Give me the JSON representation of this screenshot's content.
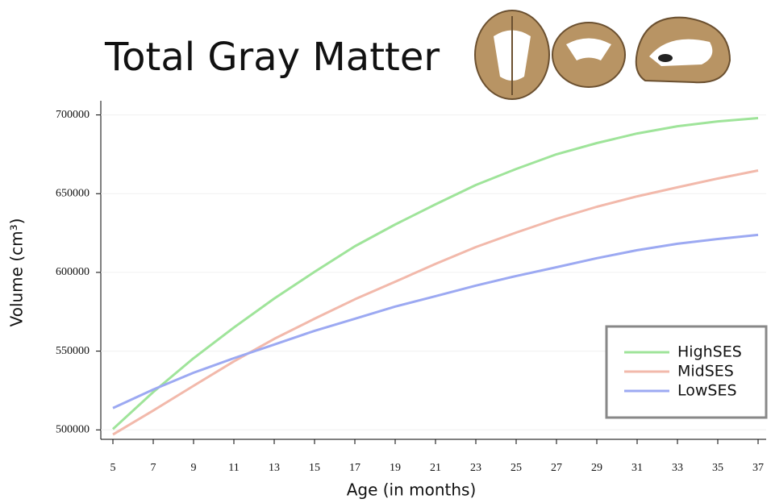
{
  "chart_data": {
    "type": "line",
    "title": "Total Gray Matter",
    "x_label": "Age (in months)",
    "y_label": "Volume (cm³)",
    "x": [
      5,
      7,
      9,
      11,
      13,
      15,
      17,
      19,
      21,
      23,
      25,
      27,
      29,
      31,
      33,
      35,
      37
    ],
    "series": [
      {
        "name": "HighSES",
        "color": "#9fe49a",
        "values": [
          500500,
          524000,
          545500,
          565000,
          583400,
          600300,
          616600,
          630400,
          643200,
          655500,
          665700,
          675000,
          682100,
          688200,
          692800,
          695900,
          698000
        ]
      },
      {
        "name": "MidSES",
        "color": "#f2b9ab",
        "values": [
          497000,
          512300,
          528000,
          543500,
          557800,
          570600,
          582900,
          594100,
          605400,
          616100,
          625300,
          634000,
          641700,
          648300,
          654000,
          659600,
          664700
        ]
      },
      {
        "name": "LowSES",
        "color": "#9ca9f2",
        "values": [
          513800,
          525600,
          536300,
          545500,
          554200,
          562900,
          570600,
          578300,
          584900,
          591600,
          597700,
          603300,
          609000,
          614100,
          618200,
          621200,
          623800
        ]
      }
    ],
    "xlim": [
      4.4,
      37.4
    ],
    "xticks": [
      5,
      7,
      9,
      11,
      13,
      15,
      17,
      19,
      21,
      23,
      25,
      27,
      29,
      31,
      33,
      35,
      37
    ],
    "ylim": [
      494000,
      709000
    ],
    "yticks": [
      500000,
      550000,
      600000,
      650000,
      700000
    ],
    "grid": true,
    "legend": "lower right"
  }
}
